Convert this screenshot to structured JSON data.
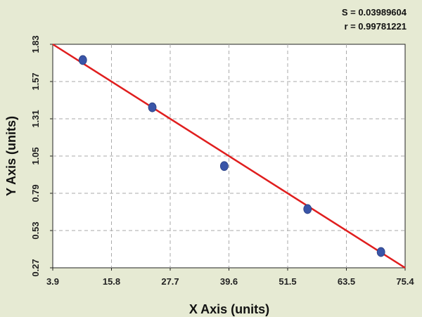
{
  "chart_data": {
    "type": "scatter",
    "xlabel": "X Axis (units)",
    "ylabel": "Y Axis (units)",
    "xlim": [
      3.9,
      75.4
    ],
    "ylim": [
      0.27,
      1.83
    ],
    "x_ticks": [
      "3.9",
      "15.8",
      "27.7",
      "39.6",
      "51.5",
      "63.5",
      "75.4"
    ],
    "y_ticks": [
      "0.27",
      "0.53",
      "0.79",
      "1.05",
      "1.31",
      "1.57",
      "1.83"
    ],
    "grid": true,
    "points": [
      {
        "x": 10.0,
        "y": 1.72
      },
      {
        "x": 24.1,
        "y": 1.39
      },
      {
        "x": 38.7,
        "y": 0.98
      },
      {
        "x": 55.6,
        "y": 0.68
      },
      {
        "x": 70.5,
        "y": 0.38
      }
    ],
    "fit_line": {
      "x": [
        3.9,
        75.4
      ],
      "y": [
        1.83,
        0.27
      ],
      "color": "#e01e1e"
    },
    "annotations": [
      "S = 0.03989604",
      "r = 0.99781221"
    ],
    "colors": {
      "background": "#e6ead3",
      "plot": "#ffffff",
      "points": "#3a55a8",
      "line": "#e01e1e",
      "grid": "#aaaaaa"
    }
  }
}
